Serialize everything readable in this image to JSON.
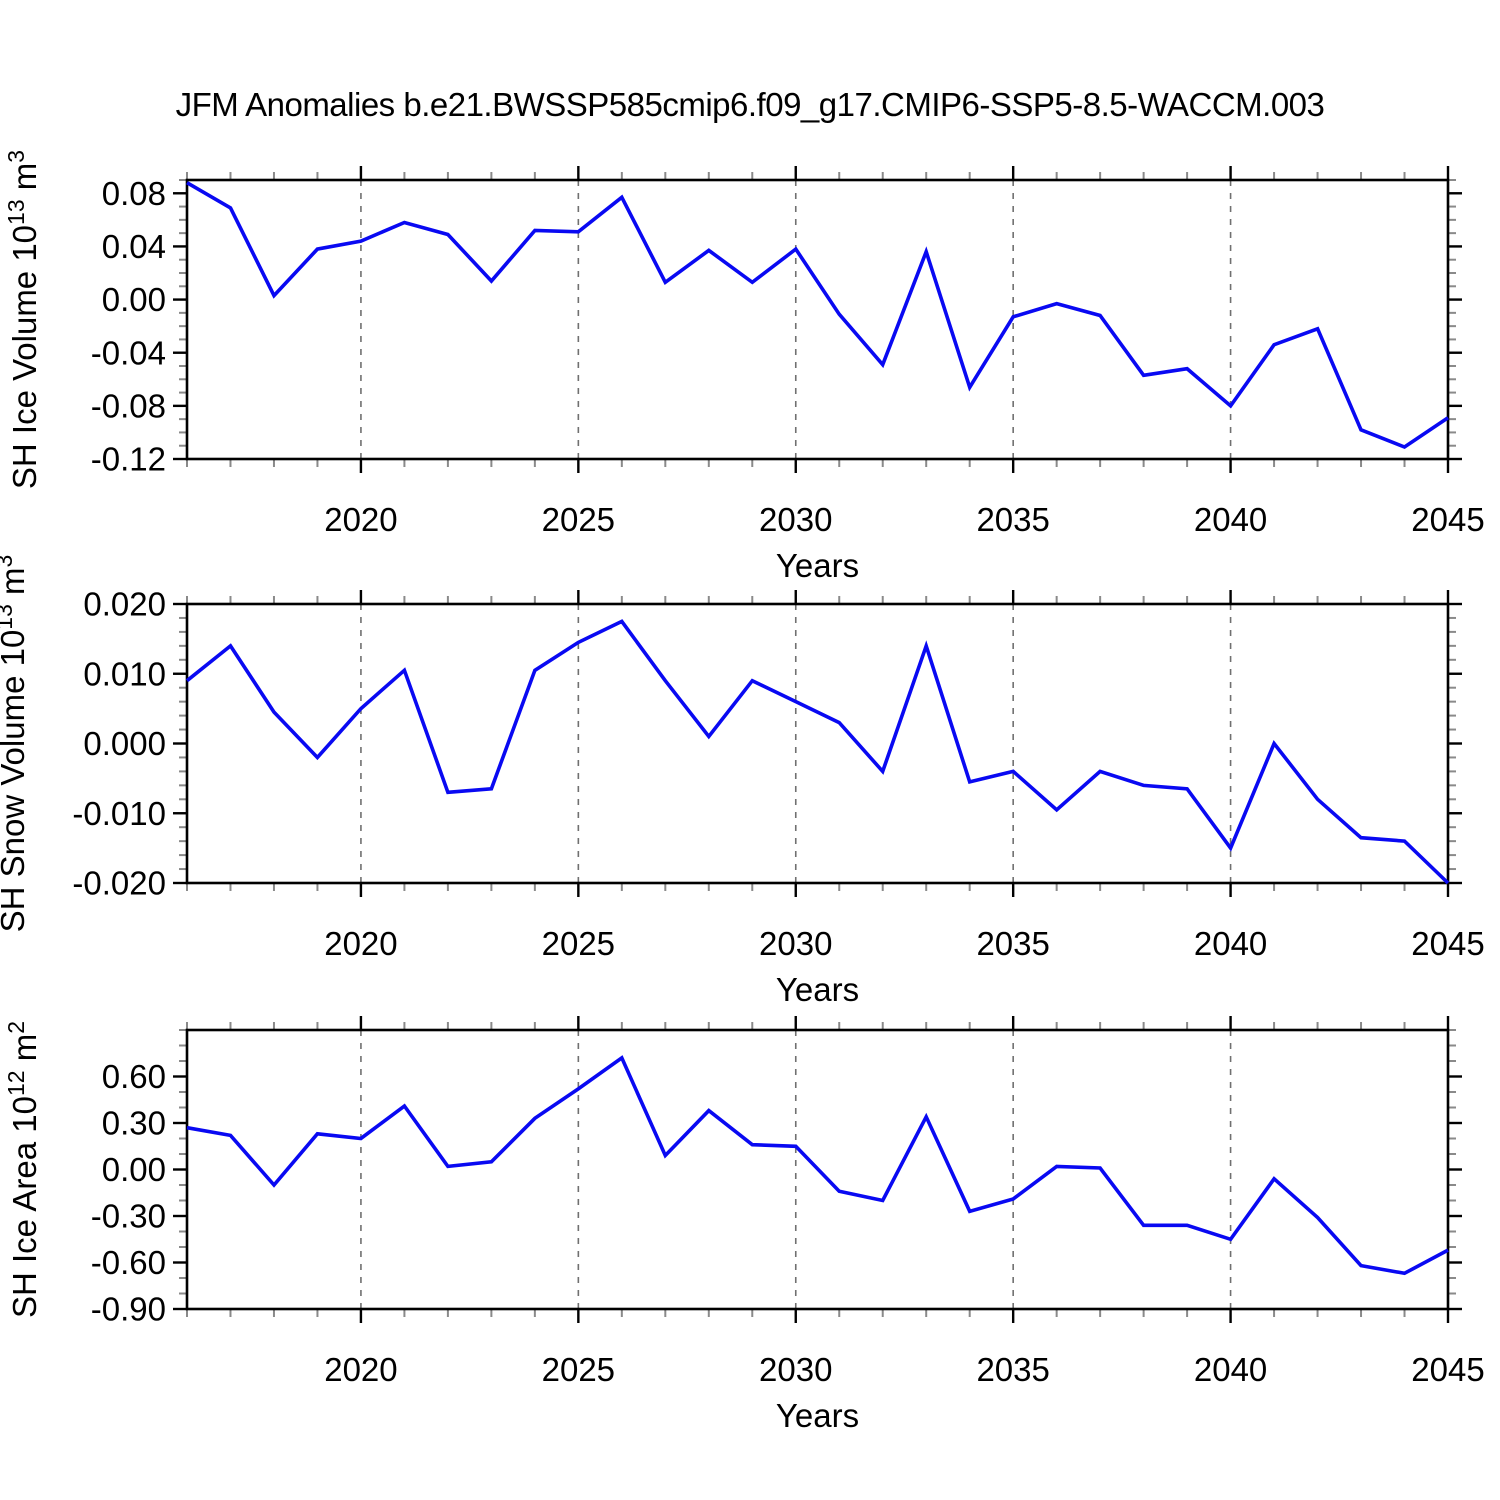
{
  "title": "JFM Anomalies b.e21.BWSSP585cmip6.f09_g17.CMIP6-SSP5-8.5-WACCM.003",
  "line_color": "#0909f2",
  "x_axis": {
    "label": "Years",
    "start": 2016,
    "end": 2045,
    "major_ticks": [
      2020,
      2025,
      2030,
      2035,
      2040,
      2045
    ],
    "gridline_years": [
      2020,
      2025,
      2030,
      2035,
      2040
    ],
    "minor_step": 1
  },
  "chart_data": [
    {
      "type": "line",
      "name": "sh-ice-volume",
      "title": "",
      "xlabel": "Years",
      "ylabel": "SH Ice Volume 10^13 m^3",
      "ylabel_parts": [
        {
          "t": "SH Ice Volume 10"
        },
        {
          "t": "13",
          "sup": true
        },
        {
          "t": " m"
        },
        {
          "t": "3",
          "sup": true
        }
      ],
      "ylim": [
        -0.12,
        0.09
      ],
      "ytick_values": [
        0.08,
        0.04,
        0.0,
        -0.04,
        -0.08,
        -0.12
      ],
      "ytick_labels": [
        "0.08",
        "0.04",
        "0.00",
        "-0.04",
        "-0.08",
        "-0.12"
      ],
      "y_minor_step": 0.01,
      "grid": "vertical-dashed",
      "x": [
        2016,
        2017,
        2018,
        2019,
        2020,
        2021,
        2022,
        2023,
        2024,
        2025,
        2026,
        2027,
        2028,
        2029,
        2030,
        2031,
        2032,
        2033,
        2034,
        2035,
        2036,
        2037,
        2038,
        2039,
        2040,
        2041,
        2042,
        2043,
        2044,
        2045
      ],
      "values": [
        0.088,
        0.069,
        0.003,
        0.038,
        0.044,
        0.058,
        0.049,
        0.014,
        0.052,
        0.051,
        0.077,
        0.013,
        0.037,
        0.013,
        0.038,
        -0.011,
        -0.049,
        0.036,
        -0.066,
        -0.013,
        -0.003,
        -0.012,
        -0.057,
        -0.052,
        -0.08,
        -0.034,
        -0.022,
        -0.098,
        -0.111,
        -0.089
      ]
    },
    {
      "type": "line",
      "name": "sh-snow-volume",
      "title": "",
      "xlabel": "Years",
      "ylabel": "SH Snow Volume 10^13 m^3",
      "ylabel_parts": [
        {
          "t": "SH Snow Volume 10"
        },
        {
          "t": "13",
          "sup": true
        },
        {
          "t": " m"
        },
        {
          "t": "3",
          "sup": true
        }
      ],
      "ylim": [
        -0.02,
        0.02
      ],
      "ytick_values": [
        0.02,
        0.01,
        0.0,
        -0.01,
        -0.02
      ],
      "ytick_labels": [
        "0.020",
        "0.010",
        "0.000",
        "-0.010",
        "-0.020"
      ],
      "y_minor_step": 0.002,
      "grid": "vertical-dashed",
      "x": [
        2016,
        2017,
        2018,
        2019,
        2020,
        2021,
        2022,
        2023,
        2024,
        2025,
        2026,
        2027,
        2028,
        2029,
        2030,
        2031,
        2032,
        2033,
        2034,
        2035,
        2036,
        2037,
        2038,
        2039,
        2040,
        2041,
        2042,
        2043,
        2044,
        2045
      ],
      "values": [
        0.009,
        0.014,
        0.0045,
        -0.002,
        0.005,
        0.0105,
        -0.007,
        -0.0065,
        0.0105,
        0.0145,
        0.0175,
        0.009,
        0.001,
        0.009,
        0.006,
        0.003,
        -0.004,
        0.014,
        -0.0055,
        -0.004,
        -0.0095,
        -0.004,
        -0.006,
        -0.0065,
        -0.015,
        0.0,
        -0.008,
        -0.0135,
        -0.014,
        -0.02
      ]
    },
    {
      "type": "line",
      "name": "sh-ice-area",
      "title": "",
      "xlabel": "Years",
      "ylabel": "SH Ice Area 10^12 m^2",
      "ylabel_parts": [
        {
          "t": "SH Ice Area 10"
        },
        {
          "t": "12",
          "sup": true
        },
        {
          "t": " m"
        },
        {
          "t": "2",
          "sup": true
        }
      ],
      "ylim": [
        -0.9,
        0.9
      ],
      "ytick_values": [
        0.6,
        0.3,
        0.0,
        -0.3,
        -0.6,
        -0.9
      ],
      "ytick_labels": [
        "0.60",
        "0.30",
        "0.00",
        "-0.30",
        "-0.60",
        "-0.90"
      ],
      "y_minor_step": 0.1,
      "grid": "vertical-dashed",
      "x": [
        2016,
        2017,
        2018,
        2019,
        2020,
        2021,
        2022,
        2023,
        2024,
        2025,
        2026,
        2027,
        2028,
        2029,
        2030,
        2031,
        2032,
        2033,
        2034,
        2035,
        2036,
        2037,
        2038,
        2039,
        2040,
        2041,
        2042,
        2043,
        2044,
        2045
      ],
      "values": [
        0.27,
        0.22,
        -0.1,
        0.23,
        0.2,
        0.41,
        0.02,
        0.05,
        0.33,
        0.52,
        0.72,
        0.09,
        0.38,
        0.16,
        0.15,
        -0.14,
        -0.2,
        0.34,
        -0.27,
        -0.19,
        0.02,
        0.01,
        -0.36,
        -0.36,
        -0.45,
        -0.06,
        -0.31,
        -0.62,
        -0.67,
        -0.52
      ]
    }
  ]
}
